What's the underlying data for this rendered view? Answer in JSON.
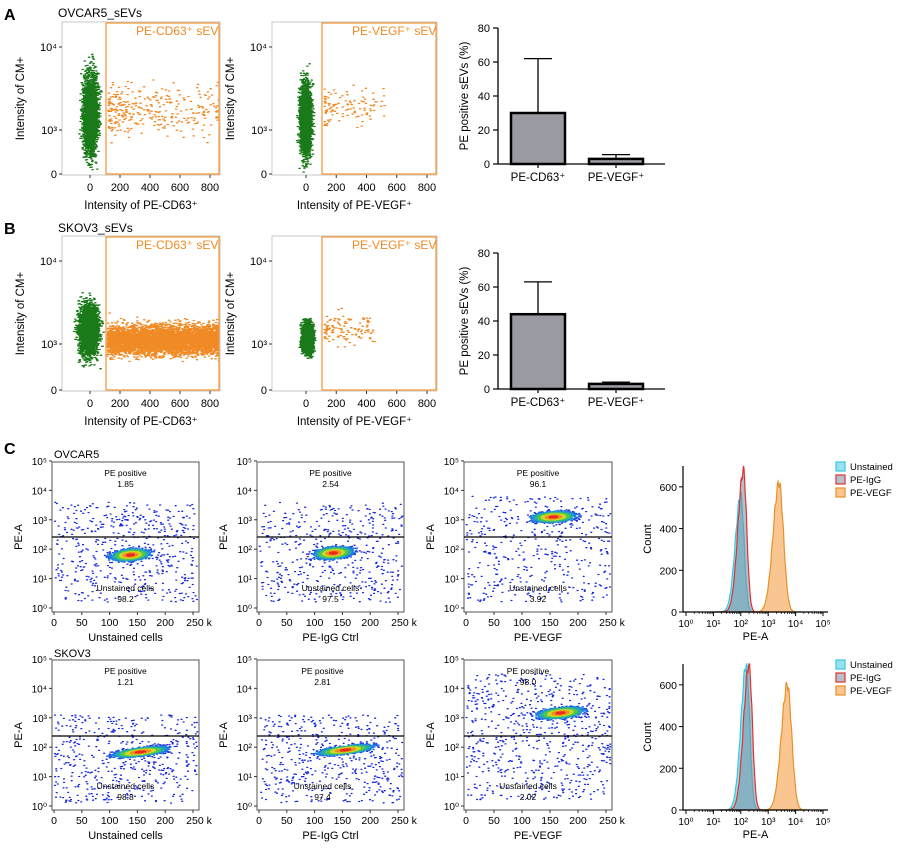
{
  "panel_letters": [
    "A",
    "B",
    "C"
  ],
  "colors": {
    "green": "#1a7a1a",
    "orange": "#f08a24",
    "gate": "#f39a3f",
    "bar": "#9a9aa2",
    "cyan": "#35c9e0",
    "red": "#e03232",
    "peach": "#f5a04a",
    "gray_overlap": "#8a9aa6"
  },
  "chart_data": [
    {
      "id": "A-scatter-cd63",
      "type": "scatter",
      "group": "OVCAR5_sEVs",
      "xlabel": "Intensity of PE-CD63⁺",
      "ylabel": "Intensity of CM+",
      "x_ticks": [
        "0",
        "200",
        "400",
        "600",
        "800"
      ],
      "y_ticks": [
        "0",
        "10³",
        "10⁴"
      ],
      "gate_label": "PE-CD63⁺ sEV"
    },
    {
      "id": "A-scatter-vegf",
      "type": "scatter",
      "group": "OVCAR5_sEVs",
      "xlabel": "Intensity of PE-VEGF⁺",
      "ylabel": "Intensity of CM+",
      "x_ticks": [
        "0",
        "200",
        "400",
        "600",
        "800"
      ],
      "y_ticks": [
        "0",
        "10³",
        "10⁴"
      ],
      "gate_label": "PE-VEGF⁺ sEV"
    },
    {
      "id": "A-bar",
      "type": "bar",
      "ylabel": "PE positive sEVs (%)",
      "categories": [
        "PE-CD63⁺",
        "PE-VEGF⁺"
      ],
      "values": [
        30,
        3
      ],
      "errors": [
        32,
        2.5
      ],
      "ylim": [
        0,
        80
      ],
      "y_ticks": [
        "0",
        "20",
        "40",
        "60",
        "80"
      ]
    },
    {
      "id": "B-scatter-cd63",
      "type": "scatter",
      "group": "SKOV3_sEVs",
      "xlabel": "Intensity of PE-CD63⁺",
      "ylabel": "Intensity of CM+",
      "x_ticks": [
        "0",
        "200",
        "400",
        "600",
        "800"
      ],
      "y_ticks": [
        "0",
        "10³",
        "10⁴"
      ],
      "gate_label": "PE-CD63⁺ sEV"
    },
    {
      "id": "B-scatter-vegf",
      "type": "scatter",
      "group": "SKOV3_sEVs",
      "xlabel": "Intensity of PE-VEGF⁺",
      "ylabel": "Intensity of CM+",
      "x_ticks": [
        "0",
        "200",
        "400",
        "600",
        "800"
      ],
      "y_ticks": [
        "0",
        "10³",
        "10⁴"
      ],
      "gate_label": "PE-VEGF⁺ sEV"
    },
    {
      "id": "B-bar",
      "type": "bar",
      "ylabel": "PE positive sEVs (%)",
      "categories": [
        "PE-CD63⁺",
        "PE-VEGF⁺"
      ],
      "values": [
        44,
        3
      ],
      "errors": [
        19,
        1
      ],
      "ylim": [
        0,
        80
      ],
      "y_ticks": [
        "0",
        "20",
        "40",
        "60",
        "80"
      ]
    },
    {
      "id": "C1-unstained",
      "type": "scatter",
      "group": "OVCAR5",
      "xlabel": "Unstained cells",
      "ylabel": "PE-A",
      "pos_label": "PE positive",
      "pos_value": "1.85",
      "neg_label": "Unstained cells",
      "neg_value": "98.2"
    },
    {
      "id": "C1-igg",
      "type": "scatter",
      "group": "OVCAR5",
      "xlabel": "PE-IgG Ctrl",
      "ylabel": "PE-A",
      "pos_label": "PE positive",
      "pos_value": "2.54",
      "neg_label": "Unstained cells",
      "neg_value": "97.5"
    },
    {
      "id": "C1-vegf",
      "type": "scatter",
      "group": "OVCAR5",
      "xlabel": "PE-VEGF",
      "ylabel": "PE-A",
      "pos_label": "PE positive",
      "pos_value": "96.1",
      "neg_label": "Unstained cells",
      "neg_value": "3.92"
    },
    {
      "id": "C1-hist",
      "type": "area",
      "xlabel": "PE-A",
      "ylabel": "Count",
      "series": [
        {
          "name": "Unstained",
          "peak_x": 100,
          "peak_y": 560
        },
        {
          "name": "PE-IgG",
          "peak_x": 125,
          "peak_y": 680
        },
        {
          "name": "PE-VEGF",
          "peak_x": 2500,
          "peak_y": 620
        }
      ],
      "ylim": [
        0,
        700
      ],
      "y_ticks": [
        "0",
        "200",
        "400",
        "600"
      ],
      "x_ticks": [
        "10⁰",
        "10¹",
        "10²",
        "10³",
        "10⁴",
        "10⁵"
      ]
    },
    {
      "id": "C2-unstained",
      "type": "scatter",
      "group": "SKOV3",
      "xlabel": "Unstained cells",
      "ylabel": "PE-A",
      "pos_label": "PE positive",
      "pos_value": "1.21",
      "neg_label": "Unstained cells",
      "neg_value": "98.8"
    },
    {
      "id": "C2-igg",
      "type": "scatter",
      "group": "SKOV3",
      "xlabel": "PE-IgG Ctrl",
      "ylabel": "PE-A",
      "pos_label": "PE positive",
      "pos_value": "2.81",
      "neg_label": "Unstained cells",
      "neg_value": "97.4"
    },
    {
      "id": "C2-vegf",
      "type": "scatter",
      "group": "SKOV3",
      "xlabel": "PE-VEGF",
      "ylabel": "PE-A",
      "pos_label": "PE positive",
      "pos_value": "98.0",
      "neg_label": "Unstained cells",
      "neg_value": "2.02"
    },
    {
      "id": "C2-hist",
      "type": "area",
      "xlabel": "PE-A",
      "ylabel": "Count",
      "series": [
        {
          "name": "Unstained",
          "peak_x": 160,
          "peak_y": 700
        },
        {
          "name": "PE-IgG",
          "peak_x": 200,
          "peak_y": 700
        },
        {
          "name": "PE-VEGF",
          "peak_x": 5000,
          "peak_y": 600
        }
      ],
      "ylim": [
        0,
        700
      ],
      "y_ticks": [
        "0",
        "200",
        "400",
        "600"
      ],
      "x_ticks": [
        "10⁰",
        "10¹",
        "10²",
        "10³",
        "10⁴",
        "10⁵"
      ]
    }
  ],
  "flow_x_ticks": [
    "0",
    "50",
    "100",
    "150",
    "200",
    "250 k"
  ],
  "flow_y_ticks": [
    "10⁰",
    "10¹",
    "10²",
    "10³",
    "10⁴",
    "10⁵"
  ]
}
